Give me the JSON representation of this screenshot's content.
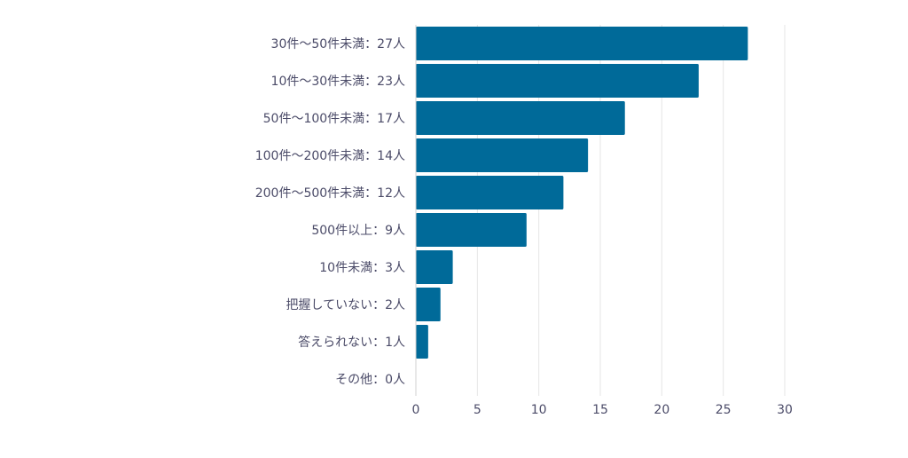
{
  "chart_data": {
    "type": "bar",
    "orientation": "horizontal",
    "categories": [
      "30件～50件未満：27人",
      "10件～30件未満：23人",
      "50件～100件未満：17人",
      "100件～200件未満：14人",
      "200件～500件未満：12人",
      "500件以上：9人",
      "10件未満：3人",
      "把握していない：2人",
      "答えられない：1人",
      "その他：0人"
    ],
    "values": [
      27,
      23,
      17,
      14,
      12,
      9,
      3,
      2,
      1,
      0
    ],
    "xlim": [
      0,
      30
    ],
    "xticks": [
      "0",
      "5",
      "10",
      "15",
      "20",
      "25",
      "30"
    ],
    "grid": true,
    "bar_color": "#006a99",
    "grid_color": "#e6e6e6"
  }
}
